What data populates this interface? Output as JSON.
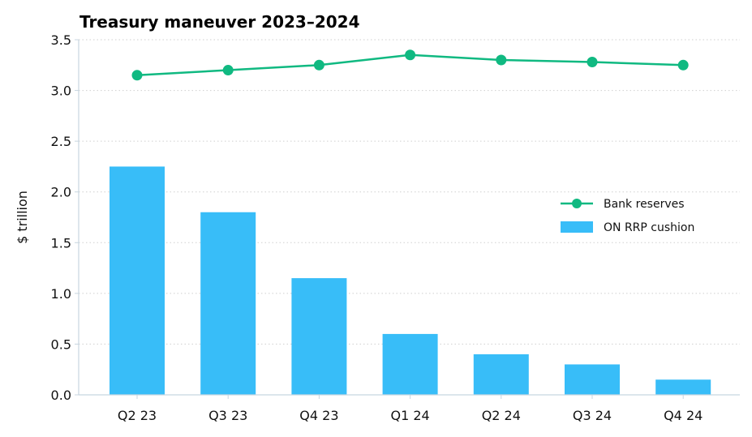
{
  "colors": {
    "bar": "#38bdf8",
    "line": "#10b981",
    "grid": "#cfcfcf",
    "axis": "#c8d6e0"
  },
  "chart_data": {
    "type": "bar",
    "title": "Treasury maneuver 2023–2024",
    "xlabel": "",
    "ylabel": "$ trillion",
    "categories": [
      "Q2 23",
      "Q3 23",
      "Q4 23",
      "Q1 24",
      "Q2 24",
      "Q3 24",
      "Q4 24"
    ],
    "ylim": [
      0,
      3.5
    ],
    "yticks": [
      "0.0",
      "0.5",
      "1.0",
      "1.5",
      "2.0",
      "2.5",
      "3.0",
      "3.5"
    ],
    "grid": true,
    "legend_position": "center-right",
    "series": [
      {
        "name": "ON RRP cushion",
        "type": "bar",
        "values": [
          2.25,
          1.8,
          1.15,
          0.6,
          0.4,
          0.3,
          0.15
        ]
      },
      {
        "name": "Bank reserves",
        "type": "line",
        "values": [
          3.15,
          3.2,
          3.25,
          3.35,
          3.3,
          3.28,
          3.25
        ]
      }
    ]
  }
}
